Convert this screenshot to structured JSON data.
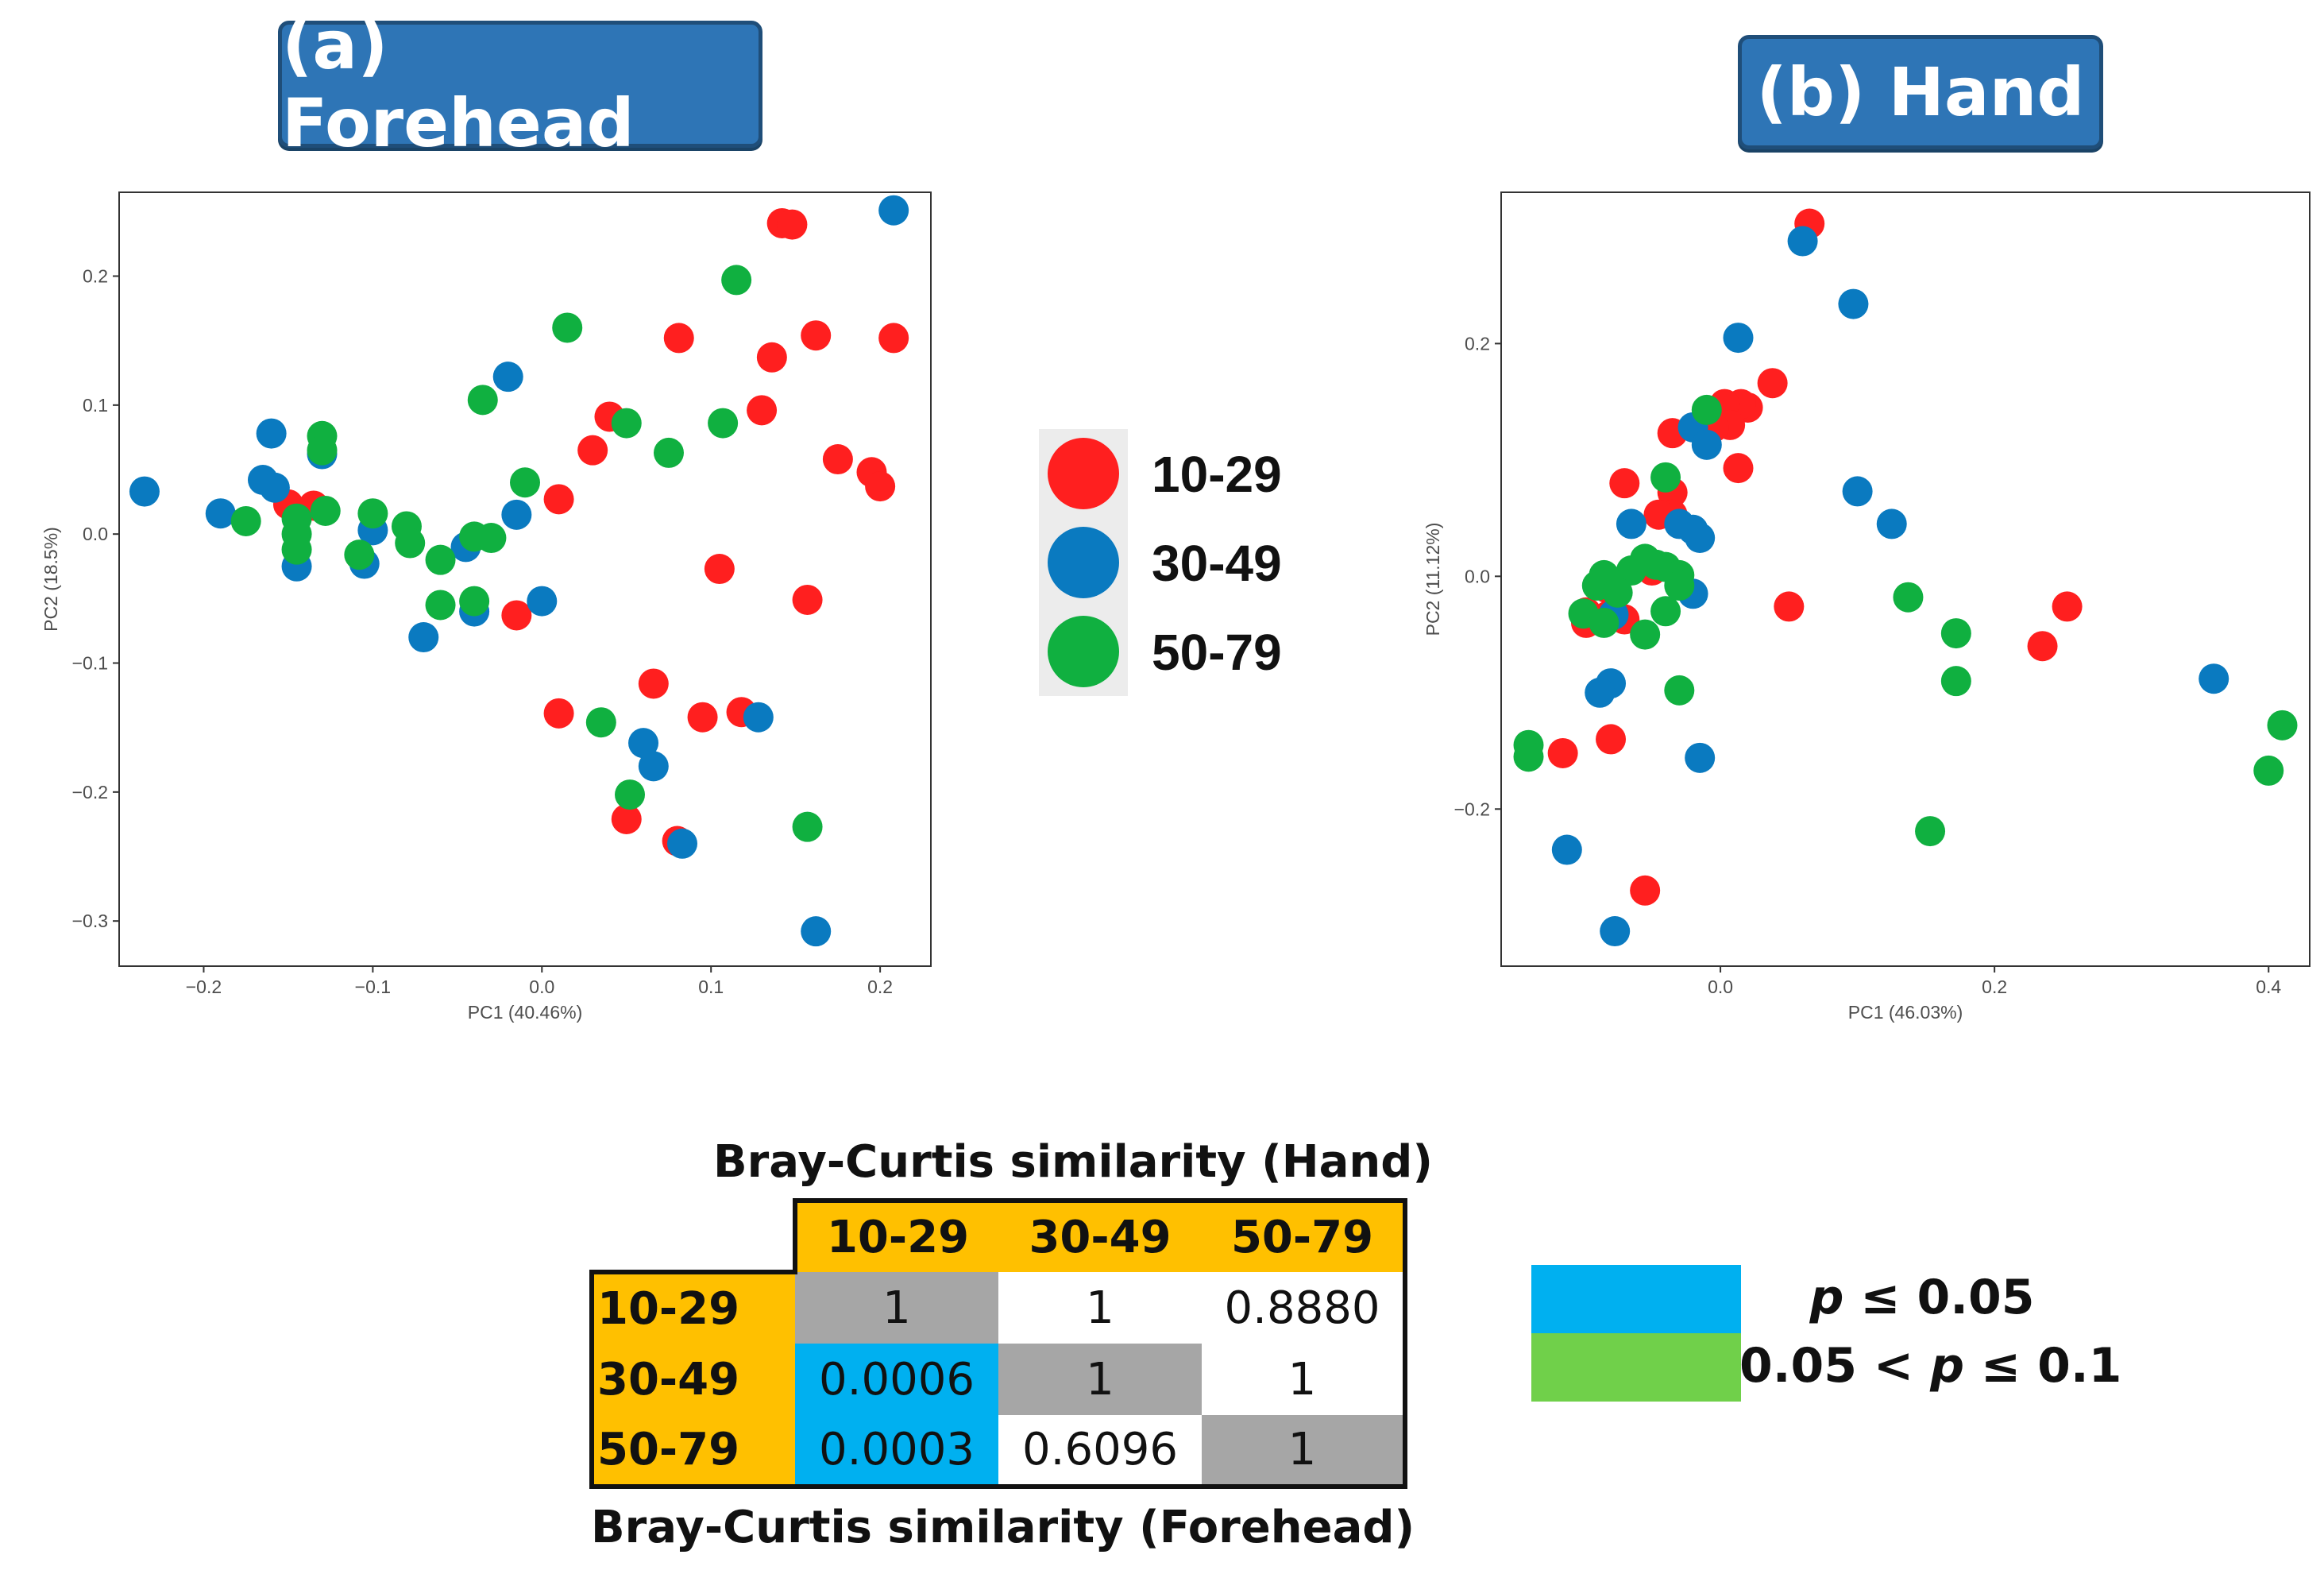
{
  "panels": {
    "a": {
      "title": "(a) Forehead"
    },
    "b": {
      "title": "(b) Hand"
    }
  },
  "legend": [
    {
      "label": "10-29",
      "color": "#ff1f1f"
    },
    {
      "label": "30-49",
      "color": "#0a7ac0"
    },
    {
      "label": "50-79",
      "color": "#10b040"
    }
  ],
  "chart_data": [
    {
      "type": "scatter",
      "title": "(a) Forehead",
      "xlabel": "PC1 (40.46%)",
      "ylabel": "PC2 (18.5%)",
      "xlim": [
        -0.25,
        0.23
      ],
      "ylim": [
        -0.335,
        0.265
      ],
      "xticks": [
        -0.2,
        -0.1,
        0.0,
        0.1,
        0.2
      ],
      "xtick_labels": [
        "−0.2",
        "−0.1",
        "0.0",
        "0.1",
        "0.2"
      ],
      "yticks": [
        0.2,
        0.1,
        0.0,
        -0.1,
        -0.2,
        -0.3
      ],
      "ytick_labels": [
        "0.2",
        "0.1",
        "0.0",
        "−0.1",
        "−0.2",
        "−0.3"
      ],
      "grid": false,
      "series": [
        {
          "name": "10-29",
          "color": "#ff1f1f",
          "points": [
            [
              0.142,
              0.241
            ],
            [
              0.148,
              0.24
            ],
            [
              0.081,
              0.152
            ],
            [
              0.162,
              0.154
            ],
            [
              0.208,
              0.152
            ],
            [
              0.136,
              0.137
            ],
            [
              0.04,
              0.091
            ],
            [
              0.13,
              0.096
            ],
            [
              0.03,
              0.065
            ],
            [
              0.175,
              0.058
            ],
            [
              0.195,
              0.048
            ],
            [
              0.2,
              0.037
            ],
            [
              0.01,
              0.027
            ],
            [
              -0.15,
              0.023
            ],
            [
              -0.135,
              0.022
            ],
            [
              0.105,
              -0.027
            ],
            [
              0.157,
              -0.051
            ],
            [
              -0.015,
              -0.063
            ],
            [
              0.066,
              -0.116
            ],
            [
              0.01,
              -0.139
            ],
            [
              0.095,
              -0.142
            ],
            [
              0.118,
              -0.138
            ],
            [
              0.05,
              -0.221
            ],
            [
              0.08,
              -0.238
            ]
          ]
        },
        {
          "name": "30-49",
          "color": "#0a7ac0",
          "points": [
            [
              0.208,
              0.251
            ],
            [
              -0.02,
              0.122
            ],
            [
              -0.16,
              0.078
            ],
            [
              -0.13,
              0.062
            ],
            [
              -0.235,
              0.033
            ],
            [
              -0.165,
              0.042
            ],
            [
              -0.158,
              0.036
            ],
            [
              -0.19,
              0.016
            ],
            [
              -0.015,
              0.015
            ],
            [
              -0.1,
              0.003
            ],
            [
              -0.045,
              -0.01
            ],
            [
              -0.105,
              -0.023
            ],
            [
              -0.145,
              -0.025
            ],
            [
              0.0,
              -0.052
            ],
            [
              -0.04,
              -0.06
            ],
            [
              -0.07,
              -0.08
            ],
            [
              0.06,
              -0.162
            ],
            [
              0.066,
              -0.18
            ],
            [
              0.128,
              -0.142
            ],
            [
              0.083,
              -0.24
            ],
            [
              0.162,
              -0.308
            ]
          ]
        },
        {
          "name": "50-79",
          "color": "#10b040",
          "points": [
            [
              0.115,
              0.197
            ],
            [
              0.015,
              0.16
            ],
            [
              -0.035,
              0.104
            ],
            [
              0.05,
              0.086
            ],
            [
              0.107,
              0.086
            ],
            [
              0.075,
              0.063
            ],
            [
              -0.13,
              0.076
            ],
            [
              -0.13,
              0.065
            ],
            [
              -0.01,
              0.04
            ],
            [
              -0.175,
              0.01
            ],
            [
              -0.145,
              0.012
            ],
            [
              -0.128,
              0.018
            ],
            [
              -0.1,
              0.016
            ],
            [
              -0.08,
              0.006
            ],
            [
              -0.078,
              -0.007
            ],
            [
              -0.04,
              -0.002
            ],
            [
              -0.03,
              -0.003
            ],
            [
              -0.145,
              0.0
            ],
            [
              -0.145,
              -0.012
            ],
            [
              -0.108,
              -0.016
            ],
            [
              -0.06,
              -0.02
            ],
            [
              -0.06,
              -0.055
            ],
            [
              -0.04,
              -0.052
            ],
            [
              0.035,
              -0.146
            ],
            [
              0.052,
              -0.202
            ],
            [
              0.157,
              -0.227
            ]
          ]
        }
      ]
    },
    {
      "type": "scatter",
      "title": "(b) Hand",
      "xlabel": "PC1 (46.03%)",
      "ylabel": "PC2 (11.12%)",
      "xlim": [
        -0.16,
        0.43
      ],
      "ylim": [
        -0.335,
        0.33
      ],
      "xticks": [
        0.0,
        0.2,
        0.4
      ],
      "xtick_labels": [
        "0.0",
        "0.2",
        "0.4"
      ],
      "yticks": [
        0.2,
        0.0,
        -0.2
      ],
      "ytick_labels": [
        "0.2",
        "0.0",
        "−0.2"
      ],
      "grid": false,
      "series": [
        {
          "name": "10-29",
          "color": "#ff1f1f",
          "points": [
            [
              0.065,
              0.303
            ],
            [
              0.038,
              0.166
            ],
            [
              0.02,
              0.145
            ],
            [
              0.015,
              0.148
            ],
            [
              0.003,
              0.148
            ],
            [
              0.007,
              0.13
            ],
            [
              -0.035,
              0.123
            ],
            [
              -0.005,
              0.128
            ],
            [
              0.013,
              0.093
            ],
            [
              -0.07,
              0.08
            ],
            [
              -0.035,
              0.072
            ],
            [
              -0.035,
              0.053
            ],
            [
              -0.045,
              0.053
            ],
            [
              -0.05,
              0.005
            ],
            [
              0.05,
              -0.026
            ],
            [
              0.253,
              -0.026
            ],
            [
              0.235,
              -0.06
            ],
            [
              -0.083,
              -0.01
            ],
            [
              -0.098,
              -0.031
            ],
            [
              -0.098,
              -0.04
            ],
            [
              -0.082,
              -0.034
            ],
            [
              -0.07,
              -0.037
            ],
            [
              -0.08,
              -0.14
            ],
            [
              -0.115,
              -0.152
            ],
            [
              -0.055,
              -0.27
            ]
          ]
        },
        {
          "name": "30-49",
          "color": "#0a7ac0",
          "points": [
            [
              0.06,
              0.288
            ],
            [
              0.097,
              0.234
            ],
            [
              0.013,
              0.205
            ],
            [
              0.1,
              0.073
            ],
            [
              0.125,
              0.045
            ],
            [
              -0.02,
              0.128
            ],
            [
              -0.01,
              0.113
            ],
            [
              -0.065,
              0.045
            ],
            [
              -0.03,
              0.045
            ],
            [
              -0.02,
              0.04
            ],
            [
              -0.015,
              0.033
            ],
            [
              -0.02,
              -0.015
            ],
            [
              -0.078,
              -0.033
            ],
            [
              -0.08,
              -0.092
            ],
            [
              -0.088,
              -0.1
            ],
            [
              -0.015,
              -0.156
            ],
            [
              0.36,
              -0.088
            ],
            [
              -0.112,
              -0.235
            ],
            [
              -0.077,
              -0.305
            ]
          ]
        },
        {
          "name": "50-79",
          "color": "#10b040",
          "points": [
            [
              -0.01,
              0.143
            ],
            [
              -0.04,
              0.085
            ],
            [
              -0.065,
              0.005
            ],
            [
              -0.055,
              0.015
            ],
            [
              -0.047,
              0.01
            ],
            [
              -0.04,
              0.008
            ],
            [
              -0.03,
              0.001
            ],
            [
              -0.085,
              0.001
            ],
            [
              -0.09,
              -0.008
            ],
            [
              -0.075,
              -0.014
            ],
            [
              -0.1,
              -0.032
            ],
            [
              -0.085,
              -0.04
            ],
            [
              -0.055,
              -0.05
            ],
            [
              -0.04,
              -0.03
            ],
            [
              -0.03,
              -0.008
            ],
            [
              -0.03,
              -0.098
            ],
            [
              0.137,
              -0.018
            ],
            [
              0.172,
              -0.049
            ],
            [
              0.172,
              -0.09
            ],
            [
              0.153,
              -0.219
            ],
            [
              0.41,
              -0.128
            ],
            [
              0.4,
              -0.167
            ],
            [
              -0.14,
              -0.145
            ],
            [
              -0.14,
              -0.155
            ]
          ]
        }
      ]
    },
    {
      "type": "table",
      "title_top": "Bray-Curtis similarity (Hand)",
      "title_bottom": "Bray-Curtis similarity (Forehead)",
      "columns": [
        "10-29",
        "30-49",
        "50-79"
      ],
      "rows": [
        {
          "label": "10-29",
          "cells": [
            "1",
            "1",
            "0.8880"
          ],
          "shade": [
            "diag",
            "none",
            "none"
          ]
        },
        {
          "label": "30-49",
          "cells": [
            "0.0006",
            "1",
            "1"
          ],
          "shade": [
            "sig",
            "diag",
            "none"
          ]
        },
        {
          "label": "50-79",
          "cells": [
            "0.0003",
            "0.6096",
            "1"
          ],
          "shade": [
            "sig",
            "none",
            "diag"
          ]
        }
      ],
      "significance_legend": [
        {
          "label": "p ≤ 0.05",
          "color": "#00b0f0",
          "pre": "",
          "italic": "p",
          "post": " ≤ 0.05"
        },
        {
          "label": "0.05 < p ≤ 0.1",
          "color": "#70d04a",
          "pre": "0.05 < ",
          "italic": "p",
          "post": " ≤ 0.1"
        }
      ]
    }
  ]
}
